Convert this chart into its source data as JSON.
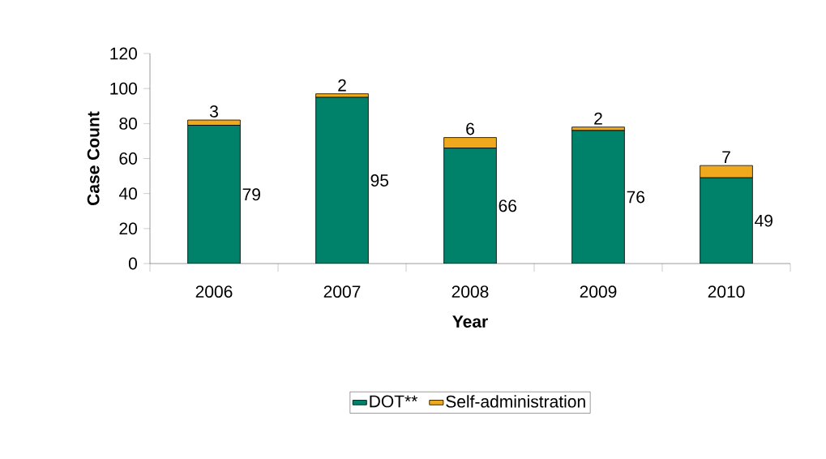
{
  "chart_data": {
    "type": "bar",
    "stacked": true,
    "xlabel": "Year",
    "ylabel": "Case Count",
    "categories": [
      "2006",
      "2007",
      "2008",
      "2009",
      "2010"
    ],
    "series": [
      {
        "name": "DOT**",
        "color": "#00826a",
        "values": [
          79,
          95,
          66,
          76,
          49
        ]
      },
      {
        "name": "Self-administration",
        "color": "#f0a81c",
        "values": [
          3,
          2,
          6,
          2,
          7
        ]
      }
    ],
    "ylim": [
      0,
      120
    ],
    "yticks": [
      0,
      20,
      40,
      60,
      80,
      100,
      120
    ],
    "data_labels": true,
    "legend": "bottom",
    "grid": false
  }
}
